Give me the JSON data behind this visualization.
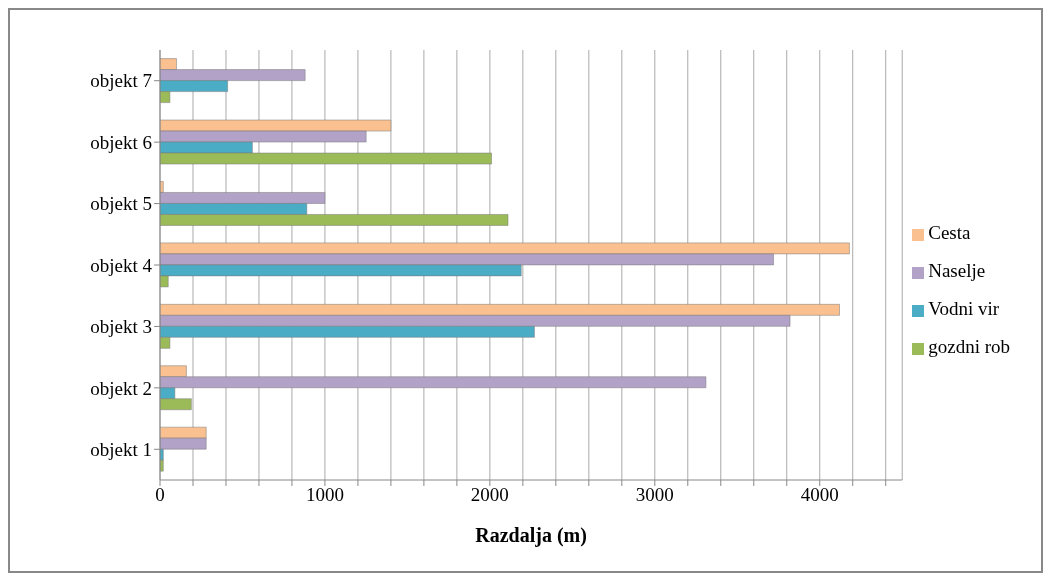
{
  "chart_data": {
    "type": "bar",
    "orientation": "horizontal",
    "xlabel": "Razdalja (m)",
    "categories": [
      "objekt 7",
      "objekt 6",
      "objekt 5",
      "objekt 4",
      "objekt 3",
      "objekt 2",
      "objekt 1"
    ],
    "series": [
      {
        "name": "Cesta",
        "color": "#fac090",
        "values": [
          100,
          1400,
          20,
          4180,
          4120,
          160,
          280
        ]
      },
      {
        "name": "Naselje",
        "color": "#b3a2c7",
        "values": [
          880,
          1250,
          1000,
          3720,
          3820,
          3310,
          280
        ]
      },
      {
        "name": "Vodni vir",
        "color": "#4bacc6",
        "values": [
          410,
          560,
          890,
          2190,
          2270,
          90,
          20
        ]
      },
      {
        "name": "gozdni rob",
        "color": "#9bbb59",
        "values": [
          60,
          2010,
          2110,
          50,
          60,
          190,
          20
        ]
      }
    ],
    "xlim": [
      0,
      4500
    ],
    "xticks": [
      0,
      {
        "value": 200,
        "label": null
      },
      {
        "value": 400,
        "label": null
      },
      {
        "value": 600,
        "label": null
      },
      {
        "value": 800,
        "label": null
      },
      1000,
      {
        "value": 1200,
        "label": null
      },
      {
        "value": 1400,
        "label": null
      },
      {
        "value": 1600,
        "label": null
      },
      {
        "value": 1800,
        "label": null
      },
      2000,
      {
        "value": 2200,
        "label": null
      },
      {
        "value": 2400,
        "label": null
      },
      {
        "value": 2600,
        "label": null
      },
      {
        "value": 2800,
        "label": null
      },
      3000,
      {
        "value": 3200,
        "label": null
      },
      {
        "value": 3400,
        "label": null
      },
      {
        "value": 3600,
        "label": null
      },
      {
        "value": 3800,
        "label": null
      },
      4000,
      {
        "value": 4200,
        "label": null
      },
      {
        "value": 4400,
        "label": null
      }
    ],
    "grid": "x",
    "legend": "right"
  }
}
